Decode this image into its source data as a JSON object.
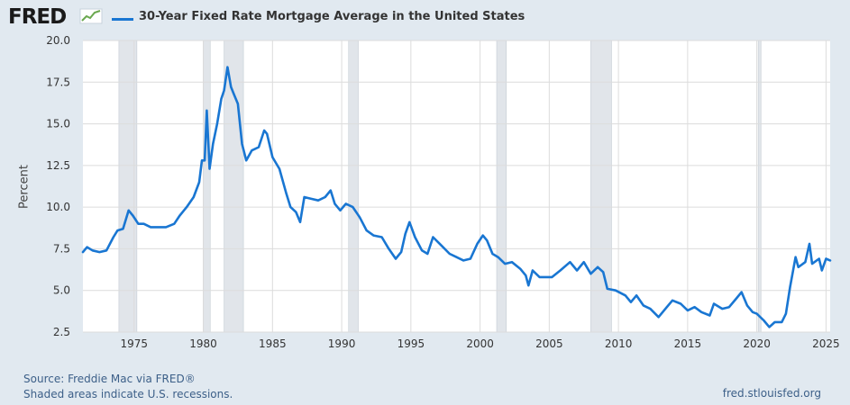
{
  "header": {
    "logo_text": "FRED",
    "logo_mark": "trend-graph-icon",
    "legend_label": "30-Year Fixed Rate Mortgage Average in the United States"
  },
  "footer": {
    "source": "Source: Freddie Mac via FRED®",
    "recession_note": "Shaded areas indicate U.S. recessions.",
    "site": "fred.stlouisfed.org"
  },
  "colors": {
    "background": "#e1e9f0",
    "plot_background": "#ffffff",
    "series": "#1976d2",
    "recession": "#e1e5ea",
    "grid": "#dcdcdc"
  },
  "chart_data": {
    "type": "line",
    "title": "30-Year Fixed Rate Mortgage Average in the United States",
    "xlabel": "",
    "ylabel": "Percent",
    "xlim": [
      1971.3,
      2025.3
    ],
    "ylim": [
      2.5,
      20.0
    ],
    "yticks": [
      2.5,
      5.0,
      7.5,
      10.0,
      12.5,
      15.0,
      17.5,
      20.0
    ],
    "ytick_labels": [
      "2.5",
      "5.0",
      "7.5",
      "10.0",
      "12.5",
      "15.0",
      "17.5",
      "20.0"
    ],
    "xticks": [
      1975,
      1980,
      1985,
      1990,
      1995,
      2000,
      2005,
      2010,
      2015,
      2020,
      2025
    ],
    "xtick_labels": [
      "1975",
      "1980",
      "1985",
      "1990",
      "1995",
      "2000",
      "2005",
      "2010",
      "2015",
      "2020",
      "2025"
    ],
    "grid": true,
    "recessions": [
      [
        1973.9,
        1975.2
      ],
      [
        1980.0,
        1980.5
      ],
      [
        1981.5,
        1982.9
      ],
      [
        1990.5,
        1991.2
      ],
      [
        2001.2,
        2001.9
      ],
      [
        2008.0,
        2009.5
      ],
      [
        2020.1,
        2020.3
      ]
    ],
    "series": [
      {
        "name": "30-Year Fixed Rate Mortgage Average in the United States",
        "x": [
          1971.3,
          1971.6,
          1972.0,
          1972.5,
          1973.0,
          1973.5,
          1973.8,
          1974.2,
          1974.6,
          1974.9,
          1975.3,
          1975.7,
          1976.2,
          1976.8,
          1977.3,
          1977.9,
          1978.3,
          1978.8,
          1979.3,
          1979.7,
          1979.9,
          1980.1,
          1980.25,
          1980.45,
          1980.7,
          1981.0,
          1981.3,
          1981.5,
          1981.75,
          1982.0,
          1982.2,
          1982.5,
          1982.8,
          1983.1,
          1983.5,
          1984.0,
          1984.4,
          1984.6,
          1985.0,
          1985.5,
          1986.0,
          1986.3,
          1986.7,
          1987.0,
          1987.3,
          1987.8,
          1988.3,
          1988.8,
          1989.2,
          1989.5,
          1989.9,
          1990.3,
          1990.8,
          1991.3,
          1991.8,
          1992.3,
          1992.9,
          1993.4,
          1993.9,
          1994.3,
          1994.6,
          1994.9,
          1995.3,
          1995.8,
          1996.2,
          1996.6,
          1997.2,
          1997.8,
          1998.3,
          1998.8,
          1999.3,
          1999.8,
          2000.2,
          2000.5,
          2000.9,
          2001.3,
          2001.8,
          2002.3,
          2002.9,
          2003.3,
          2003.5,
          2003.8,
          2004.3,
          2004.7,
          2005.2,
          2005.8,
          2006.5,
          2007.0,
          2007.5,
          2008.0,
          2008.5,
          2008.9,
          2009.2,
          2009.8,
          2010.5,
          2010.9,
          2011.3,
          2011.8,
          2012.3,
          2012.9,
          2013.5,
          2013.9,
          2014.5,
          2015.0,
          2015.5,
          2016.0,
          2016.6,
          2016.9,
          2017.5,
          2018.0,
          2018.5,
          2018.9,
          2019.3,
          2019.7,
          2020.0,
          2020.5,
          2020.9,
          2021.3,
          2021.8,
          2022.1,
          2022.4,
          2022.8,
          2023.0,
          2023.5,
          2023.8,
          2024.0,
          2024.5,
          2024.7,
          2025.0,
          2025.3
        ],
        "values": [
          7.3,
          7.6,
          7.4,
          7.3,
          7.4,
          8.2,
          8.6,
          8.7,
          9.8,
          9.5,
          9.0,
          9.0,
          8.8,
          8.8,
          8.8,
          9.0,
          9.5,
          10.0,
          10.6,
          11.5,
          12.8,
          12.8,
          15.8,
          12.3,
          13.8,
          15.0,
          16.5,
          17.0,
          18.4,
          17.2,
          16.8,
          16.2,
          13.8,
          12.8,
          13.4,
          13.6,
          14.6,
          14.4,
          13.0,
          12.3,
          10.8,
          10.0,
          9.7,
          9.1,
          10.6,
          10.5,
          10.4,
          10.6,
          11.0,
          10.2,
          9.8,
          10.2,
          10.0,
          9.4,
          8.6,
          8.3,
          8.2,
          7.5,
          6.9,
          7.3,
          8.4,
          9.1,
          8.2,
          7.4,
          7.2,
          8.2,
          7.7,
          7.2,
          7.0,
          6.8,
          6.9,
          7.8,
          8.3,
          8.0,
          7.2,
          7.0,
          6.6,
          6.7,
          6.3,
          5.9,
          5.3,
          6.2,
          5.8,
          5.8,
          5.8,
          6.2,
          6.7,
          6.2,
          6.7,
          6.0,
          6.4,
          6.1,
          5.1,
          5.0,
          4.7,
          4.3,
          4.7,
          4.1,
          3.9,
          3.4,
          4.0,
          4.4,
          4.2,
          3.8,
          4.0,
          3.7,
          3.5,
          4.2,
          3.9,
          4.0,
          4.5,
          4.9,
          4.1,
          3.7,
          3.6,
          3.2,
          2.8,
          3.1,
          3.1,
          3.6,
          5.2,
          7.0,
          6.4,
          6.7,
          7.8,
          6.6,
          6.9,
          6.2,
          6.9,
          6.8
        ]
      }
    ]
  }
}
